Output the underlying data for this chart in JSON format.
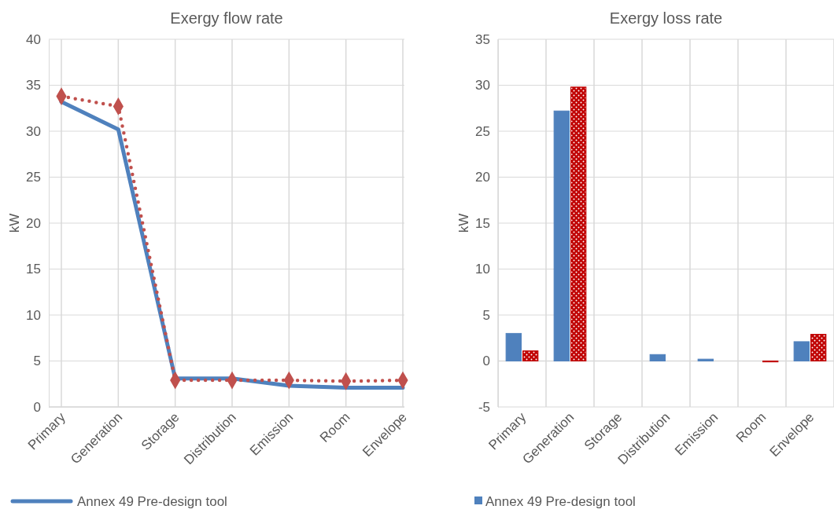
{
  "chart_data": [
    {
      "type": "line",
      "title": "Exergy flow rate",
      "ylabel": "kW",
      "categories": [
        "Primary",
        "Generation",
        "Storage",
        "Distribution",
        "Emission",
        "Room",
        "Envelope"
      ],
      "ylim": [
        0,
        40
      ],
      "yticks": [
        0,
        5,
        10,
        15,
        20,
        25,
        30,
        35,
        40
      ],
      "grid": true,
      "legend": "bottom",
      "series": [
        {
          "name": "Annex 49 Pre-design tool",
          "color": "#4f81bd",
          "values": [
            33.2,
            30.2,
            3.1,
            3.1,
            2.3,
            2.1,
            2.1
          ],
          "marker": "none",
          "line_style": "solid"
        },
        {
          "color": "#c0504d",
          "values": [
            33.8,
            32.7,
            2.9,
            2.9,
            2.9,
            2.8,
            2.9
          ],
          "marker": "diamond",
          "line_style": "dotted"
        }
      ]
    },
    {
      "type": "bar",
      "title": "Exergy  loss rate",
      "ylabel": "kW",
      "categories": [
        "Primary",
        "Generation",
        "Storage",
        "Distribution",
        "Emission",
        "Room",
        "Envelope"
      ],
      "ylim": [
        -5,
        35
      ],
      "yticks": [
        -5,
        0,
        5,
        10,
        15,
        20,
        25,
        30,
        35
      ],
      "grid": true,
      "legend": "bottom",
      "series": [
        {
          "name": "Annex 49 Pre-design tool",
          "color": "#4f81bd",
          "values": [
            3.0,
            27.2,
            0,
            0.7,
            0.2,
            0,
            2.1
          ]
        },
        {
          "color": "#c00000",
          "values": [
            1.1,
            29.8,
            0,
            0,
            0,
            -0.1,
            2.9
          ]
        }
      ]
    }
  ]
}
